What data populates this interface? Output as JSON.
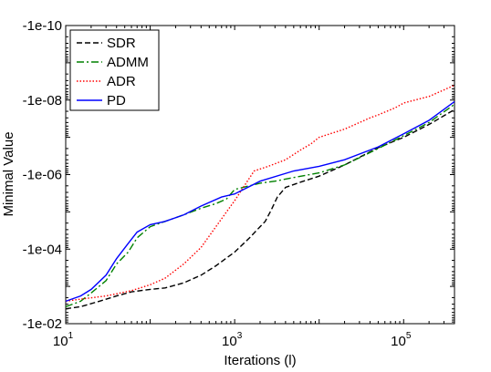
{
  "chart_data": {
    "type": "line",
    "title": "",
    "xlabel": "Iterations (l)",
    "ylabel": "Minimal Value",
    "x_scale": "log",
    "y_scale": "log of magnitude (negative values)",
    "xlim": [
      10,
      400000
    ],
    "ylim": [
      -0.01,
      -1e-10
    ],
    "x_ticks": [
      {
        "value": 10,
        "base": "10",
        "exp": "1"
      },
      {
        "value": 1000,
        "base": "10",
        "exp": "3"
      },
      {
        "value": 100000,
        "base": "10",
        "exp": "5"
      }
    ],
    "y_ticks": [
      {
        "value": -1e-10,
        "label": "-1e-10"
      },
      {
        "value": -1e-08,
        "label": "-1e-08"
      },
      {
        "value": -1e-06,
        "label": "-1e-06"
      },
      {
        "value": -0.0001,
        "label": "-1e-04"
      },
      {
        "value": -0.01,
        "label": "-1e-02"
      }
    ],
    "grid": false,
    "legend_position": "top-left",
    "series": [
      {
        "name": "SDR",
        "color": "#000000",
        "dash": "dashed",
        "points": [
          [
            10,
            -0.004
          ],
          [
            15,
            -0.0035
          ],
          [
            25,
            -0.0025
          ],
          [
            40,
            -0.0018
          ],
          [
            60,
            -0.0014
          ],
          [
            100,
            -0.0012
          ],
          [
            150,
            -0.0011
          ],
          [
            250,
            -0.0008
          ],
          [
            400,
            -0.0005
          ],
          [
            600,
            -0.00028
          ],
          [
            1000,
            -0.00012
          ],
          [
            1500,
            -5e-05
          ],
          [
            2000,
            -2.5e-05
          ],
          [
            2300,
            -1.8e-05
          ],
          [
            2700,
            -9e-06
          ],
          [
            3200,
            -4e-06
          ],
          [
            4000,
            -2.2e-06
          ],
          [
            6000,
            -1.6e-06
          ],
          [
            10000,
            -1.1e-06
          ],
          [
            20000,
            -5.5e-07
          ],
          [
            50000,
            -1.9e-07
          ],
          [
            100000,
            -1e-07
          ],
          [
            200000,
            -4.5e-08
          ],
          [
            400000,
            -1.8e-08
          ]
        ]
      },
      {
        "name": "ADMM",
        "color": "#008000",
        "dash": "dashdot",
        "points": [
          [
            10,
            -0.0035
          ],
          [
            15,
            -0.0025
          ],
          [
            20,
            -0.0015
          ],
          [
            30,
            -0.0007
          ],
          [
            40,
            -0.00025
          ],
          [
            55,
            -0.00012
          ],
          [
            70,
            -5e-05
          ],
          [
            100,
            -2.5e-05
          ],
          [
            150,
            -1.8e-05
          ],
          [
            250,
            -1.2e-05
          ],
          [
            400,
            -8e-06
          ],
          [
            600,
            -6e-06
          ],
          [
            800,
            -4.5e-06
          ],
          [
            1000,
            -2.5e-06
          ],
          [
            2000,
            -1.7e-06
          ],
          [
            3000,
            -1.5e-06
          ],
          [
            5000,
            -1.2e-06
          ],
          [
            10000,
            -9e-07
          ],
          [
            20000,
            -5.5e-07
          ],
          [
            50000,
            -2e-07
          ],
          [
            100000,
            -9e-08
          ],
          [
            200000,
            -4e-08
          ],
          [
            400000,
            -1.3e-08
          ]
        ]
      },
      {
        "name": "ADR",
        "color": "#ff0000",
        "dash": "dotted",
        "points": [
          [
            10,
            -0.0025
          ],
          [
            15,
            -0.0022
          ],
          [
            30,
            -0.0018
          ],
          [
            60,
            -0.0013
          ],
          [
            100,
            -0.0009
          ],
          [
            150,
            -0.0006
          ],
          [
            250,
            -0.00025
          ],
          [
            400,
            -9e-05
          ],
          [
            600,
            -2.5e-05
          ],
          [
            800,
            -1e-05
          ],
          [
            1000,
            -5e-06
          ],
          [
            1300,
            -2e-06
          ],
          [
            1700,
            -8e-07
          ],
          [
            2500,
            -6e-07
          ],
          [
            4000,
            -4e-07
          ],
          [
            6000,
            -2.2e-07
          ],
          [
            8000,
            -1.5e-07
          ],
          [
            10000,
            -1e-07
          ],
          [
            20000,
            -6e-08
          ],
          [
            30000,
            -4e-08
          ],
          [
            40000,
            -3e-08
          ],
          [
            50000,
            -2.5e-08
          ],
          [
            80000,
            -1.6e-08
          ],
          [
            100000,
            -1.2e-08
          ],
          [
            200000,
            -8e-09
          ],
          [
            400000,
            -4e-09
          ]
        ]
      },
      {
        "name": "PD",
        "color": "#0000ff",
        "dash": "solid",
        "points": [
          [
            10,
            -0.0025
          ],
          [
            15,
            -0.0018
          ],
          [
            20,
            -0.0012
          ],
          [
            30,
            -0.0005
          ],
          [
            40,
            -0.00018
          ],
          [
            55,
            -7e-05
          ],
          [
            70,
            -3.5e-05
          ],
          [
            100,
            -2.2e-05
          ],
          [
            150,
            -1.8e-05
          ],
          [
            250,
            -1.2e-05
          ],
          [
            400,
            -7e-06
          ],
          [
            700,
            -4e-06
          ],
          [
            1000,
            -3.3e-06
          ],
          [
            2000,
            -1.5e-06
          ],
          [
            5000,
            -8e-07
          ],
          [
            10000,
            -6e-07
          ],
          [
            20000,
            -4e-07
          ],
          [
            50000,
            -1.8e-07
          ],
          [
            100000,
            -8e-08
          ],
          [
            200000,
            -3.5e-08
          ],
          [
            400000,
            -1.1e-08
          ]
        ]
      }
    ]
  }
}
